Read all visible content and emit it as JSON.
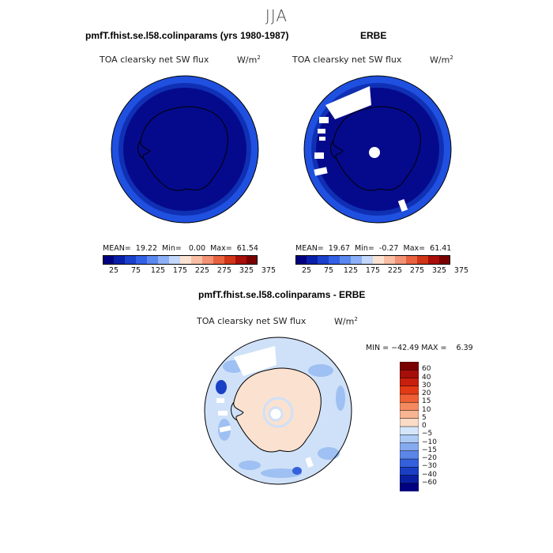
{
  "figure": {
    "title": "JJA"
  },
  "panels": {
    "model": {
      "title": "pmfT.fhist.se.l58.colinparams (yrs 1980-1987)",
      "field_label": "TOA clearsky net SW flux",
      "units_base": "W/m",
      "units_exp": "2",
      "stats": "MEAN=  19.22  Min=   0.00  Max=  61.54"
    },
    "obs": {
      "title": "ERBE",
      "field_label": "TOA clearsky net SW flux",
      "units_base": "W/m",
      "units_exp": "2",
      "stats": "MEAN=  19.67  Min=  -0.27  Max=  61.41"
    },
    "diff": {
      "title": "pmfT.fhist.se.l58.colinparams - ERBE",
      "field_label": "TOA clearsky net SW flux",
      "units_base": "W/m",
      "units_exp": "2",
      "stats": "MIN = −42.49 MAX =    6.39"
    }
  },
  "colorbars": {
    "abs": {
      "colors": [
        "#000080",
        "#0a1fa8",
        "#1a40cc",
        "#3360e6",
        "#5a88f0",
        "#8cb0f8",
        "#c3d8fa",
        "#fbe3d2",
        "#f8bfa4",
        "#f39275",
        "#e8623f",
        "#d13518",
        "#a80f0a",
        "#7a0000"
      ],
      "tick_labels": [
        "25",
        "75",
        "125",
        "175",
        "225",
        "275",
        "325",
        "375"
      ]
    },
    "diff": {
      "colors_top_to_bottom": [
        "#7a0000",
        "#a50f0a",
        "#c81f0e",
        "#e33a16",
        "#f06035",
        "#f58a60",
        "#f8b592",
        "#fbdcc6",
        "#d6e6fa",
        "#aecbf6",
        "#86aaf0",
        "#5b86e8",
        "#3460dc",
        "#1a3fc4",
        "#0a20a2",
        "#000080"
      ],
      "tick_labels_top_to_bottom": [
        "60",
        "40",
        "30",
        "20",
        "15",
        "10",
        "5",
        "0",
        "−5",
        "−10",
        "−15",
        "−20",
        "−30",
        "−40",
        "−60"
      ]
    }
  },
  "chart_data": [
    {
      "type": "heatmap",
      "title": "pmfT.fhist.se.l58.colinparams (yrs 1980-1987)",
      "subtitle": "TOA clearsky net SW flux",
      "units": "W/m2",
      "projection": "south polar stereographic",
      "mean": 19.22,
      "min": 0.0,
      "max": 61.54,
      "colorbar_levels": [
        25,
        75,
        125,
        175,
        225,
        275,
        325,
        375
      ]
    },
    {
      "type": "heatmap",
      "title": "ERBE",
      "subtitle": "TOA clearsky net SW flux",
      "units": "W/m2",
      "projection": "south polar stereographic",
      "mean": 19.67,
      "min": -0.27,
      "max": 61.41,
      "colorbar_levels": [
        25,
        75,
        125,
        175,
        225,
        275,
        325,
        375
      ]
    },
    {
      "type": "heatmap",
      "title": "pmfT.fhist.se.l58.colinparams - ERBE",
      "subtitle": "TOA clearsky net SW flux",
      "units": "W/m2",
      "projection": "south polar stereographic",
      "min": -42.49,
      "max": 6.39,
      "colorbar_levels": [
        -60,
        -40,
        -30,
        -20,
        -15,
        -10,
        -5,
        0,
        5,
        10,
        15,
        20,
        30,
        40,
        60
      ]
    }
  ]
}
